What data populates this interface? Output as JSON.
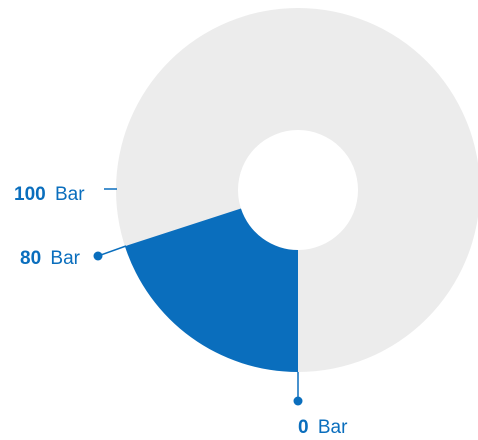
{
  "chart_data": {
    "type": "pie",
    "title": "",
    "series": [
      {
        "label": "80 Bar to 0 Bar",
        "value": 20,
        "color": "#0a6ebd"
      },
      {
        "label": "0 Bar to 100 Bar",
        "value": 75,
        "color": "#ececec"
      },
      {
        "label": "100 Bar to 80 Bar",
        "value": 5,
        "color": "#ececec"
      }
    ],
    "scale_labels": [
      {
        "value": "100",
        "unit": "Bar",
        "style": "tick"
      },
      {
        "value": "80",
        "unit": "Bar",
        "style": "dot"
      },
      {
        "value": "0",
        "unit": "Bar",
        "style": "dot"
      }
    ],
    "colors": {
      "accent": "#0a6ebd",
      "track": "#ececec",
      "label": "#0a6ebd"
    }
  }
}
